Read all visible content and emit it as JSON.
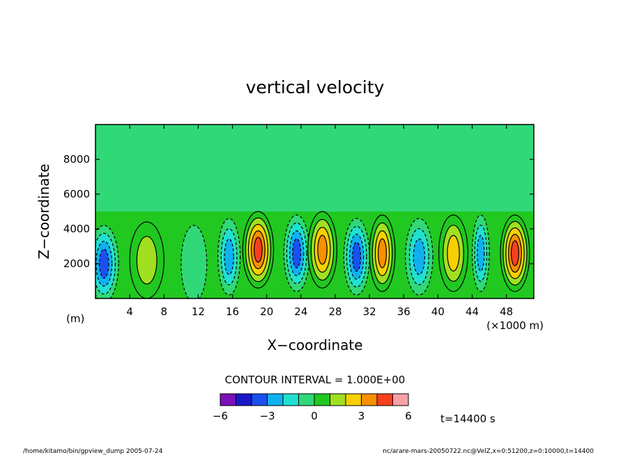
{
  "chart_data": {
    "type": "heatmap",
    "title": "vertical velocity",
    "xlabel": "X−coordinate",
    "ylabel": "Z−coordinate",
    "x_units_label": "(×1000 m)",
    "y_units_label": "(m)",
    "xlim": [
      0,
      51.2
    ],
    "ylim": [
      0,
      10000
    ],
    "x_ticks": [
      4,
      8,
      12,
      16,
      20,
      24,
      28,
      32,
      36,
      40,
      44,
      48
    ],
    "y_ticks": [
      2000,
      4000,
      6000,
      8000
    ],
    "contour_interval_label": "CONTOUR INTERVAL = 1.000E+00",
    "colorbar": {
      "levels": [
        -6,
        -5,
        -4,
        -3,
        -2,
        -1,
        0,
        1,
        2,
        3,
        4,
        5,
        6
      ],
      "tick_labels": [
        "−6",
        "−3",
        "0",
        "3",
        "6"
      ],
      "tick_values": [
        -6,
        -3,
        0,
        3,
        6
      ],
      "colors": [
        "#7a10b8",
        "#1818c8",
        "#1a50f0",
        "#10b0f0",
        "#20e0d0",
        "#30d878",
        "#20c820",
        "#a0e020",
        "#f8d000",
        "#f89000",
        "#f84020",
        "#f8a0a8"
      ]
    },
    "cells": [
      {
        "x": 1.0,
        "w": 3.4,
        "peak": -3.5,
        "zc": 2000
      },
      {
        "x": 6.0,
        "w": 4.0,
        "peak": 2.0,
        "zc": 2200
      },
      {
        "x": 11.5,
        "w": 3.0,
        "peak": -1.0,
        "zc": 2000
      },
      {
        "x": 15.6,
        "w": 2.6,
        "peak": -2.2,
        "zc": 2400
      },
      {
        "x": 19.0,
        "w": 3.6,
        "peak": 4.2,
        "zc": 2800
      },
      {
        "x": 23.5,
        "w": 3.0,
        "peak": -3.5,
        "zc": 2600
      },
      {
        "x": 26.5,
        "w": 3.4,
        "peak": 3.5,
        "zc": 2800
      },
      {
        "x": 30.5,
        "w": 3.0,
        "peak": -3.2,
        "zc": 2400
      },
      {
        "x": 33.5,
        "w": 3.0,
        "peak": 4.0,
        "zc": 2600
      },
      {
        "x": 37.8,
        "w": 3.2,
        "peak": -2.2,
        "zc": 2400
      },
      {
        "x": 41.8,
        "w": 3.4,
        "peak": 3.0,
        "zc": 2600
      },
      {
        "x": 45.0,
        "w": 2.0,
        "peak": -3.0,
        "zc": 2600
      },
      {
        "x": 49.0,
        "w": 3.4,
        "peak": 4.5,
        "zc": 2600
      }
    ],
    "time_label": "t=14400 s"
  },
  "footer": {
    "left": "/home/kitamo/bin/gpview_dump  2005-07-24",
    "right": "nc/arare-mars-20050722.nc@VelZ,x=0:51200,z=0:10000,t=14400"
  }
}
